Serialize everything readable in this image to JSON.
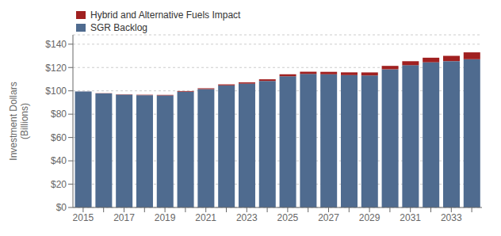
{
  "chart_data": {
    "type": "bar",
    "stacked": true,
    "grid": true,
    "legend": "upper left",
    "ylabel": "Investment Dollars\n(Billions)",
    "categories": [
      "2015",
      null,
      "2017",
      null,
      "2019",
      null,
      "2021",
      null,
      "2023",
      null,
      "2025",
      null,
      "2027",
      null,
      "2029",
      null,
      "2031",
      null,
      "2033",
      null
    ],
    "series": [
      {
        "name": "SGR Backlog",
        "color": "#4f6b8f",
        "values": [
          99.4,
          97.8,
          96.8,
          96.3,
          96.1,
          99.3,
          101.5,
          104.7,
          106.2,
          108.5,
          112.5,
          114.5,
          114.2,
          113.5,
          113.2,
          118.5,
          122.0,
          124.5,
          125.5,
          127.1
        ]
      },
      {
        "name": "Hybrid and Alternative Fuels Impact",
        "color": "#a02020",
        "values": [
          0.024,
          0.159,
          0.25,
          0.35,
          0.45,
          0.55,
          0.7,
          0.85,
          1.05,
          1.4,
          1.7,
          1.9,
          2.1,
          2.35,
          2.6,
          2.9,
          3.4,
          3.9,
          4.5,
          5.9
        ]
      }
    ],
    "ylim": [
      0,
      148
    ],
    "yticks": [
      {
        "value": 0,
        "label": "$0"
      },
      {
        "value": 20,
        "label": "$20"
      },
      {
        "value": 40,
        "label": "$40"
      },
      {
        "value": 60,
        "label": "$60"
      },
      {
        "value": 80,
        "label": "$80"
      },
      {
        "value": 100,
        "label": "$100"
      },
      {
        "value": 120,
        "label": "$120"
      },
      {
        "value": 140,
        "label": "$140"
      }
    ]
  }
}
